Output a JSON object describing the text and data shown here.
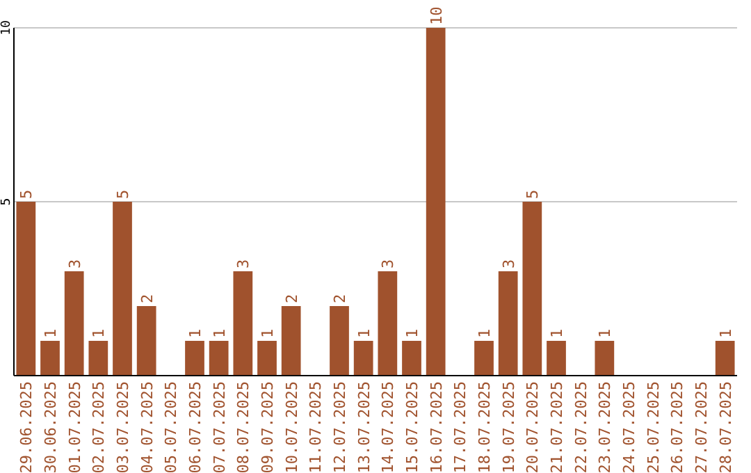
{
  "chart_data": {
    "type": "bar",
    "categories": [
      "29.06.2025",
      "30.06.2025",
      "01.07.2025",
      "02.07.2025",
      "03.07.2025",
      "04.07.2025",
      "05.07.2025",
      "06.07.2025",
      "07.07.2025",
      "08.07.2025",
      "09.07.2025",
      "10.07.2025",
      "11.07.2025",
      "12.07.2025",
      "13.07.2025",
      "14.07.2025",
      "15.07.2025",
      "16.07.2025",
      "17.07.2025",
      "18.07.2025",
      "19.07.2025",
      "20.07.2025",
      "21.07.2025",
      "22.07.2025",
      "23.07.2025",
      "24.07.2025",
      "25.07.2025",
      "26.07.2025",
      "27.07.2025",
      "28.07.2025"
    ],
    "values": [
      5,
      1,
      3,
      1,
      5,
      2,
      0,
      1,
      1,
      3,
      1,
      2,
      0,
      2,
      1,
      3,
      1,
      10,
      0,
      1,
      3,
      5,
      1,
      0,
      1,
      0,
      0,
      0,
      0,
      1
    ],
    "value_labels": [
      "5",
      "1",
      "3",
      "1",
      "5",
      "2",
      null,
      "1",
      "1",
      "3",
      "1",
      "2",
      null,
      "2",
      "1",
      "3",
      "1",
      "10",
      null,
      "1",
      "3",
      "5",
      "1",
      null,
      "1",
      null,
      null,
      null,
      null,
      "1"
    ],
    "color": "#a0522d",
    "ylim": [
      0,
      10
    ],
    "yticks": [
      {
        "value": 0,
        "label": null
      },
      5,
      10
    ],
    "grid": "y"
  }
}
